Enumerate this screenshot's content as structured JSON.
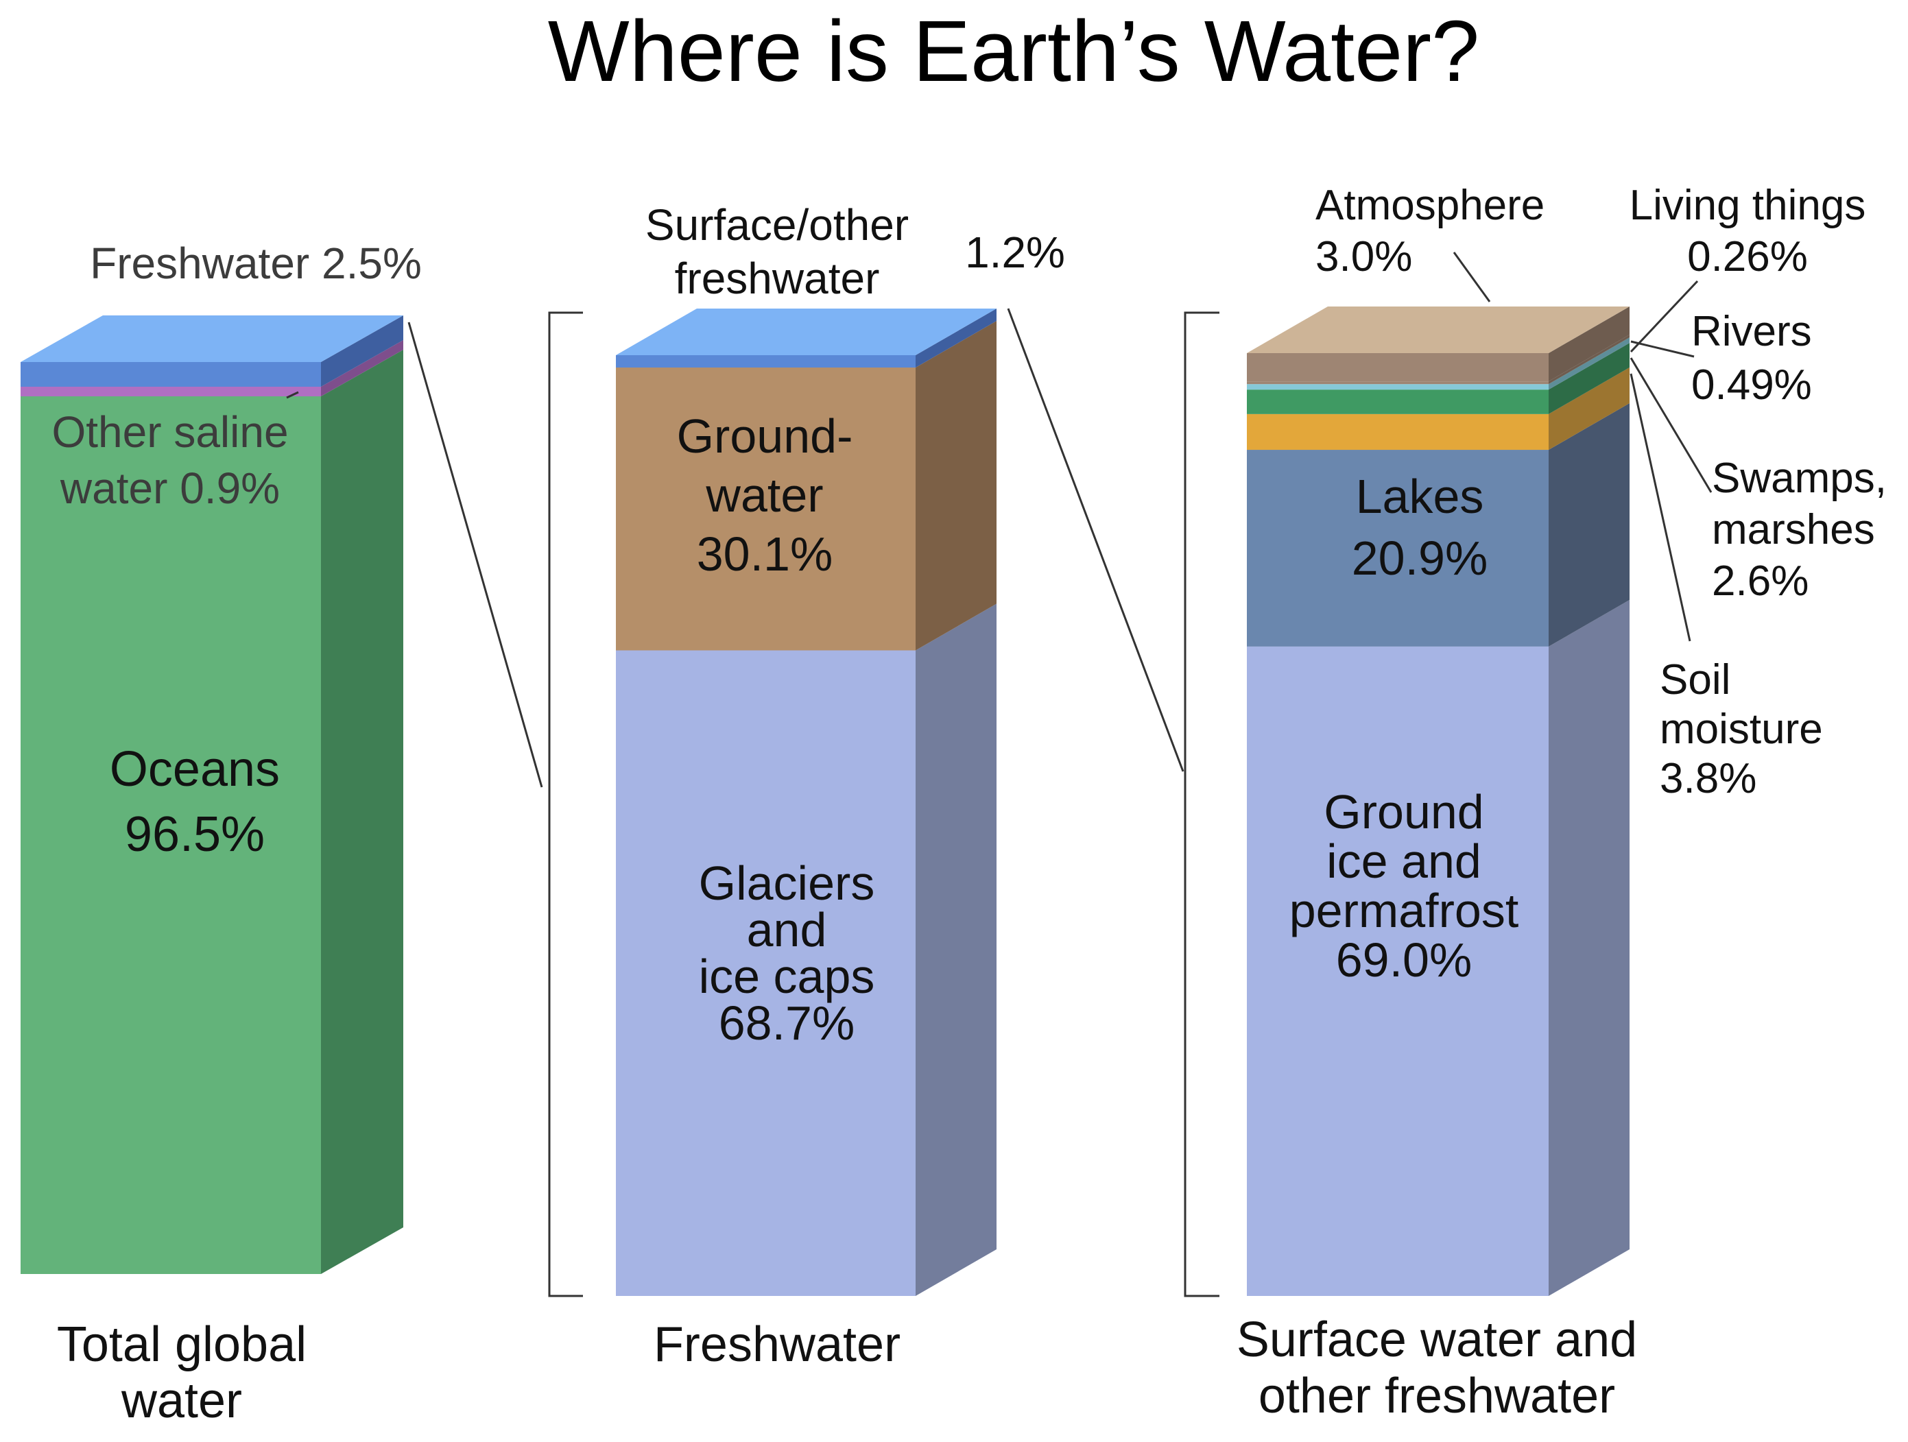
{
  "title": "Where is Earth’s Water?",
  "chart_data": [
    {
      "type": "stacked-bar",
      "category": "Total global water",
      "unit": "%",
      "series": [
        {
          "name": "Oceans",
          "value": 96.5,
          "label": "Oceans\n96.5%",
          "color": "#63B37A",
          "side_color": "#3F7F54"
        },
        {
          "name": "Other saline water",
          "value": 0.9,
          "label": "Other saline\nwater 0.9%",
          "color": "#B06FC2",
          "side_color": "#7E4E8C"
        },
        {
          "name": "Freshwater",
          "value": 2.5,
          "label": "Freshwater 2.5%",
          "color": "#5A88D6",
          "side_color": "#3E5FA0"
        }
      ]
    },
    {
      "type": "stacked-bar",
      "category": "Freshwater",
      "unit": "%",
      "series": [
        {
          "name": "Glaciers and ice caps",
          "value": 68.7,
          "label": "Glaciers\nand\nice caps\n68.7%",
          "color": "#A6B4E4",
          "side_color": "#737D9C"
        },
        {
          "name": "Groundwater",
          "value": 30.1,
          "label": "Ground-\nwater\n30.1%",
          "color": "#B58F69",
          "side_color": "#7C6046"
        },
        {
          "name": "Surface/other freshwater",
          "value": 1.2,
          "label": "Surface/other\nfreshwater",
          "value_label": "1.2%",
          "color": "#5A88D6",
          "side_color": "#3E5FA0"
        }
      ]
    },
    {
      "type": "stacked-bar",
      "category": "Surface water and other freshwater",
      "unit": "%",
      "series": [
        {
          "name": "Ground ice and permafrost",
          "value": 69.0,
          "label": "Ground\nice and\npermafrost\n69.0%",
          "color": "#A6B4E4",
          "side_color": "#737D9C"
        },
        {
          "name": "Lakes",
          "value": 20.9,
          "label": "Lakes\n20.9%",
          "color": "#6A87AE",
          "side_color": "#47566E"
        },
        {
          "name": "Soil moisture",
          "value": 3.8,
          "label": "Soil\nmoisture\n3.8%",
          "color": "#E3A73A",
          "side_color": "#9C7530"
        },
        {
          "name": "Swamps, marshes",
          "value": 2.6,
          "label": "Swamps,\nmarshes\n2.6%",
          "color": "#3F9A63",
          "side_color": "#2D6C47"
        },
        {
          "name": "Rivers",
          "value": 0.49,
          "label": "Rivers\n0.49%",
          "color": "#86C9D8",
          "side_color": "#5E8E99"
        },
        {
          "name": "Living things",
          "value": 0.26,
          "label": "Living things\n0.26%",
          "color": "#9E8573",
          "side_color": "#6E5C4F"
        },
        {
          "name": "Atmosphere",
          "value": 3.0,
          "label": "Atmosphere\n3.0%",
          "color": "#9E8573",
          "side_color": "#6E5C4F"
        }
      ]
    }
  ],
  "colors": {
    "text": "#111111",
    "gray_text": "#3c3c3c",
    "connector": "#333333",
    "top_blue": "#7DB3F5",
    "top_tan": "#CDB497"
  }
}
